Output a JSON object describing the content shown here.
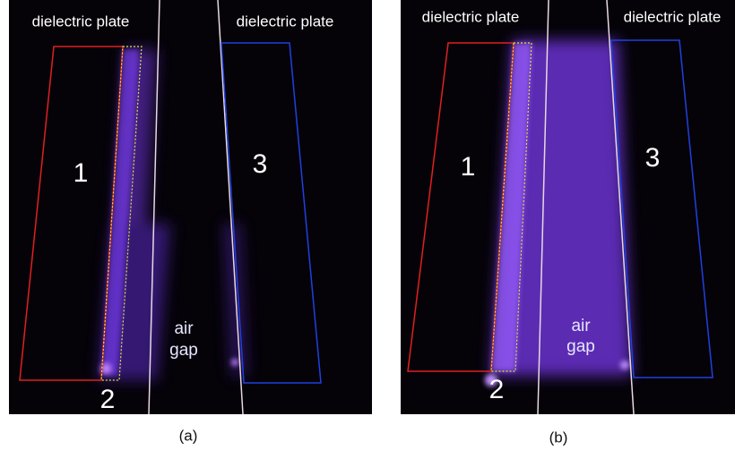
{
  "panels": [
    {
      "caption": "(a)",
      "left_plate": "dielectric plate",
      "right_plate": "dielectric plate",
      "region_1": "1",
      "region_2": "2",
      "region_3": "3",
      "air_gap": [
        "air",
        "gap"
      ]
    },
    {
      "caption": "(b)",
      "left_plate": "dielectric plate",
      "right_plate": "dielectric plate",
      "region_1": "1",
      "region_2": "2",
      "region_3": "3",
      "air_gap": [
        "air",
        "gap"
      ]
    }
  ]
}
